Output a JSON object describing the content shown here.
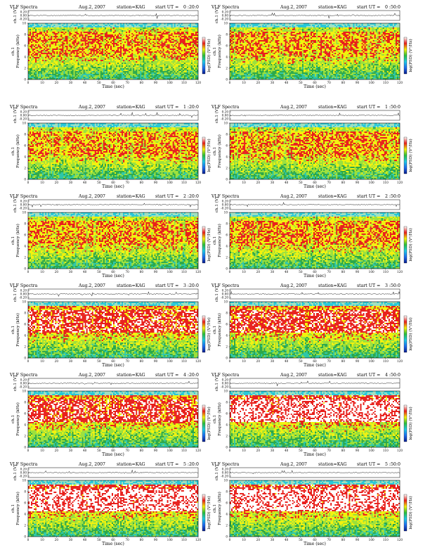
{
  "page": {
    "title_prefix": "VLF Spectra",
    "date": "Aug.2, 2007",
    "station": "station=KAG",
    "start_prefix": "start  UT =",
    "time_axis_label": "Time  (sec)",
    "freq_axis_label": "Frequency  (kHz)",
    "ch_axis_label": "ch.1 (V)",
    "ch_label_short": "ch.1",
    "colorbar_label": "log(PSD) (V²/Hz)"
  },
  "colors": {
    "spectro_low": "#2ba84a",
    "spectro_mid": "#f2f20c",
    "spectro_high": "#e8201c",
    "spectro_peak": "#ffffff",
    "spectro_top_band": "#25c8d8",
    "colorbar_stops": [
      "#0b1f8f",
      "#1e6df0",
      "#1ec9e6",
      "#2bbf3c",
      "#f4f10b",
      "#e8201c",
      "#ffffff"
    ]
  },
  "chart_data": [
    {
      "type": "heatmap",
      "start_ut": "0 :20:0",
      "xlabel": "Time  (sec)",
      "ylabel": "Frequency  (kHz)",
      "xlim": [
        0,
        120
      ],
      "ylim": [
        0,
        10
      ],
      "xticks": [
        "0",
        "10",
        "20",
        "30",
        "40",
        "50",
        "60",
        "70",
        "80",
        "90",
        "100",
        "110",
        "120"
      ],
      "yticks": [
        "0",
        "2",
        "4",
        "6",
        "8",
        "10"
      ],
      "waveform_yticks": [
        "0.20",
        "0.00",
        "-0.20"
      ],
      "intensity": "moderate"
    },
    {
      "type": "heatmap",
      "start_ut": "0 :50:0",
      "xlabel": "Time  (sec)",
      "ylabel": "Frequency  (kHz)",
      "xlim": [
        0,
        120
      ],
      "ylim": [
        0,
        10
      ],
      "xticks": [
        "0",
        "10",
        "20",
        "30",
        "40",
        "50",
        "60",
        "70",
        "80",
        "90",
        "100",
        "110",
        "120"
      ],
      "yticks": [
        "0",
        "2",
        "4",
        "6",
        "8",
        "10"
      ],
      "waveform_yticks": [
        "0.20",
        "0.00",
        "-0.20"
      ],
      "intensity": "moderate"
    },
    {
      "type": "heatmap",
      "start_ut": "1 :20:0",
      "xlabel": "Time  (sec)",
      "ylabel": "Frequency  (kHz)",
      "xlim": [
        0,
        120
      ],
      "ylim": [
        0,
        10
      ],
      "xticks": [
        "0",
        "10",
        "20",
        "30",
        "40",
        "50",
        "60",
        "70",
        "80",
        "90",
        "100",
        "110",
        "120"
      ],
      "yticks": [
        "0",
        "2",
        "4",
        "6",
        "8",
        "10"
      ],
      "waveform_yticks": [
        "0.20",
        "0.00",
        "-0.20"
      ],
      "intensity": "moderate"
    },
    {
      "type": "heatmap",
      "start_ut": "1 :50:0",
      "xlabel": "Time  (sec)",
      "ylabel": "Frequency  (kHz)",
      "xlim": [
        0,
        120
      ],
      "ylim": [
        0,
        10
      ],
      "xticks": [
        "0",
        "10",
        "20",
        "30",
        "40",
        "50",
        "60",
        "70",
        "80",
        "90",
        "100",
        "110",
        "120"
      ],
      "yticks": [
        "0",
        "2",
        "4",
        "6",
        "8",
        "10"
      ],
      "waveform_yticks": [
        "0.20",
        "0.00",
        "-0.20"
      ],
      "intensity": "moderate"
    },
    {
      "type": "heatmap",
      "start_ut": "2 :20:0",
      "xlabel": "Time  (sec)",
      "ylabel": "Frequency  (kHz)",
      "xlim": [
        0,
        120
      ],
      "ylim": [
        0,
        10
      ],
      "xticks": [
        "0",
        "10",
        "20",
        "30",
        "40",
        "50",
        "60",
        "70",
        "80",
        "90",
        "100",
        "110",
        "120"
      ],
      "yticks": [
        "0",
        "2",
        "4",
        "6",
        "8",
        "10"
      ],
      "waveform_yticks": [
        "0.20",
        "0.00",
        "-0.20"
      ],
      "intensity": "moderate"
    },
    {
      "type": "heatmap",
      "start_ut": "2 :50:0",
      "xlabel": "Time  (sec)",
      "ylabel": "Frequency  (kHz)",
      "xlim": [
        0,
        120
      ],
      "ylim": [
        0,
        10
      ],
      "xticks": [
        "0",
        "10",
        "20",
        "30",
        "40",
        "50",
        "60",
        "70",
        "80",
        "90",
        "100",
        "110",
        "120"
      ],
      "yticks": [
        "0",
        "2",
        "4",
        "6",
        "8",
        "10"
      ],
      "waveform_yticks": [
        "0.20",
        "0.00",
        "-0.20"
      ],
      "intensity": "moderate"
    },
    {
      "type": "heatmap",
      "start_ut": "3 :20:0",
      "xlabel": "Time  (sec)",
      "ylabel": "Frequency  (kHz)",
      "xlim": [
        0,
        120
      ],
      "ylim": [
        0,
        10
      ],
      "xticks": [
        "0",
        "10",
        "20",
        "30",
        "40",
        "50",
        "60",
        "70",
        "80",
        "90",
        "100",
        "110",
        "120"
      ],
      "yticks": [
        "0",
        "2",
        "4",
        "6",
        "8",
        "10"
      ],
      "waveform_yticks": [
        "0.20",
        "0.00",
        "-0.20"
      ],
      "intensity": "high"
    },
    {
      "type": "heatmap",
      "start_ut": "3 :50:0",
      "xlabel": "Time  (sec)",
      "ylabel": "Frequency  (kHz)",
      "xlim": [
        0,
        120
      ],
      "ylim": [
        0,
        10
      ],
      "xticks": [
        "0",
        "10",
        "20",
        "30",
        "40",
        "50",
        "60",
        "70",
        "80",
        "90",
        "100",
        "110",
        "120"
      ],
      "yticks": [
        "0",
        "2",
        "4",
        "6",
        "8",
        "10"
      ],
      "waveform_yticks": [
        "0.20",
        "0.00",
        "-0.20"
      ],
      "intensity": "high"
    },
    {
      "type": "heatmap",
      "start_ut": "4 :20:0",
      "xlabel": "Time  (sec)",
      "ylabel": "Frequency  (kHz)",
      "xlim": [
        0,
        120
      ],
      "ylim": [
        0,
        10
      ],
      "xticks": [
        "0",
        "10",
        "20",
        "30",
        "40",
        "50",
        "60",
        "70",
        "80",
        "90",
        "100",
        "110",
        "120"
      ],
      "yticks": [
        "0",
        "2",
        "4",
        "6",
        "8",
        "10"
      ],
      "waveform_yticks": [
        "0.20",
        "0.00",
        "-0.20"
      ],
      "intensity": "high"
    },
    {
      "type": "heatmap",
      "start_ut": "4 :50:0",
      "xlabel": "Time  (sec)",
      "ylabel": "Frequency  (kHz)",
      "xlim": [
        0,
        120
      ],
      "ylim": [
        0,
        10
      ],
      "xticks": [
        "0",
        "10",
        "20",
        "30",
        "40",
        "50",
        "60",
        "70",
        "80",
        "90",
        "100",
        "110",
        "120"
      ],
      "yticks": [
        "0",
        "2",
        "4",
        "6",
        "8",
        "10"
      ],
      "waveform_yticks": [
        "0.20",
        "0.00",
        "-0.20"
      ],
      "intensity": "very-high"
    },
    {
      "type": "heatmap",
      "start_ut": "5 :20:0",
      "xlabel": "Time  (sec)",
      "ylabel": "Frequency  (kHz)",
      "xlim": [
        0,
        120
      ],
      "ylim": [
        0,
        10
      ],
      "xticks": [
        "0",
        "10",
        "20",
        "30",
        "40",
        "50",
        "60",
        "70",
        "80",
        "90",
        "100",
        "110",
        "120"
      ],
      "yticks": [
        "0",
        "2",
        "4",
        "6",
        "8",
        "10"
      ],
      "waveform_yticks": [
        "0.20",
        "0.00",
        "-0.20"
      ],
      "intensity": "very-high"
    },
    {
      "type": "heatmap",
      "start_ut": "5 :50:0",
      "xlabel": "Time  (sec)",
      "ylabel": "Frequency  (kHz)",
      "xlim": [
        0,
        120
      ],
      "ylim": [
        0,
        10
      ],
      "xticks": [
        "0",
        "10",
        "20",
        "30",
        "40",
        "50",
        "60",
        "70",
        "80",
        "90",
        "100",
        "110",
        "120"
      ],
      "yticks": [
        "0",
        "2",
        "4",
        "6",
        "8",
        "10"
      ],
      "waveform_yticks": [
        "0.20",
        "0.00",
        "-0.20"
      ],
      "intensity": "very-high"
    }
  ]
}
